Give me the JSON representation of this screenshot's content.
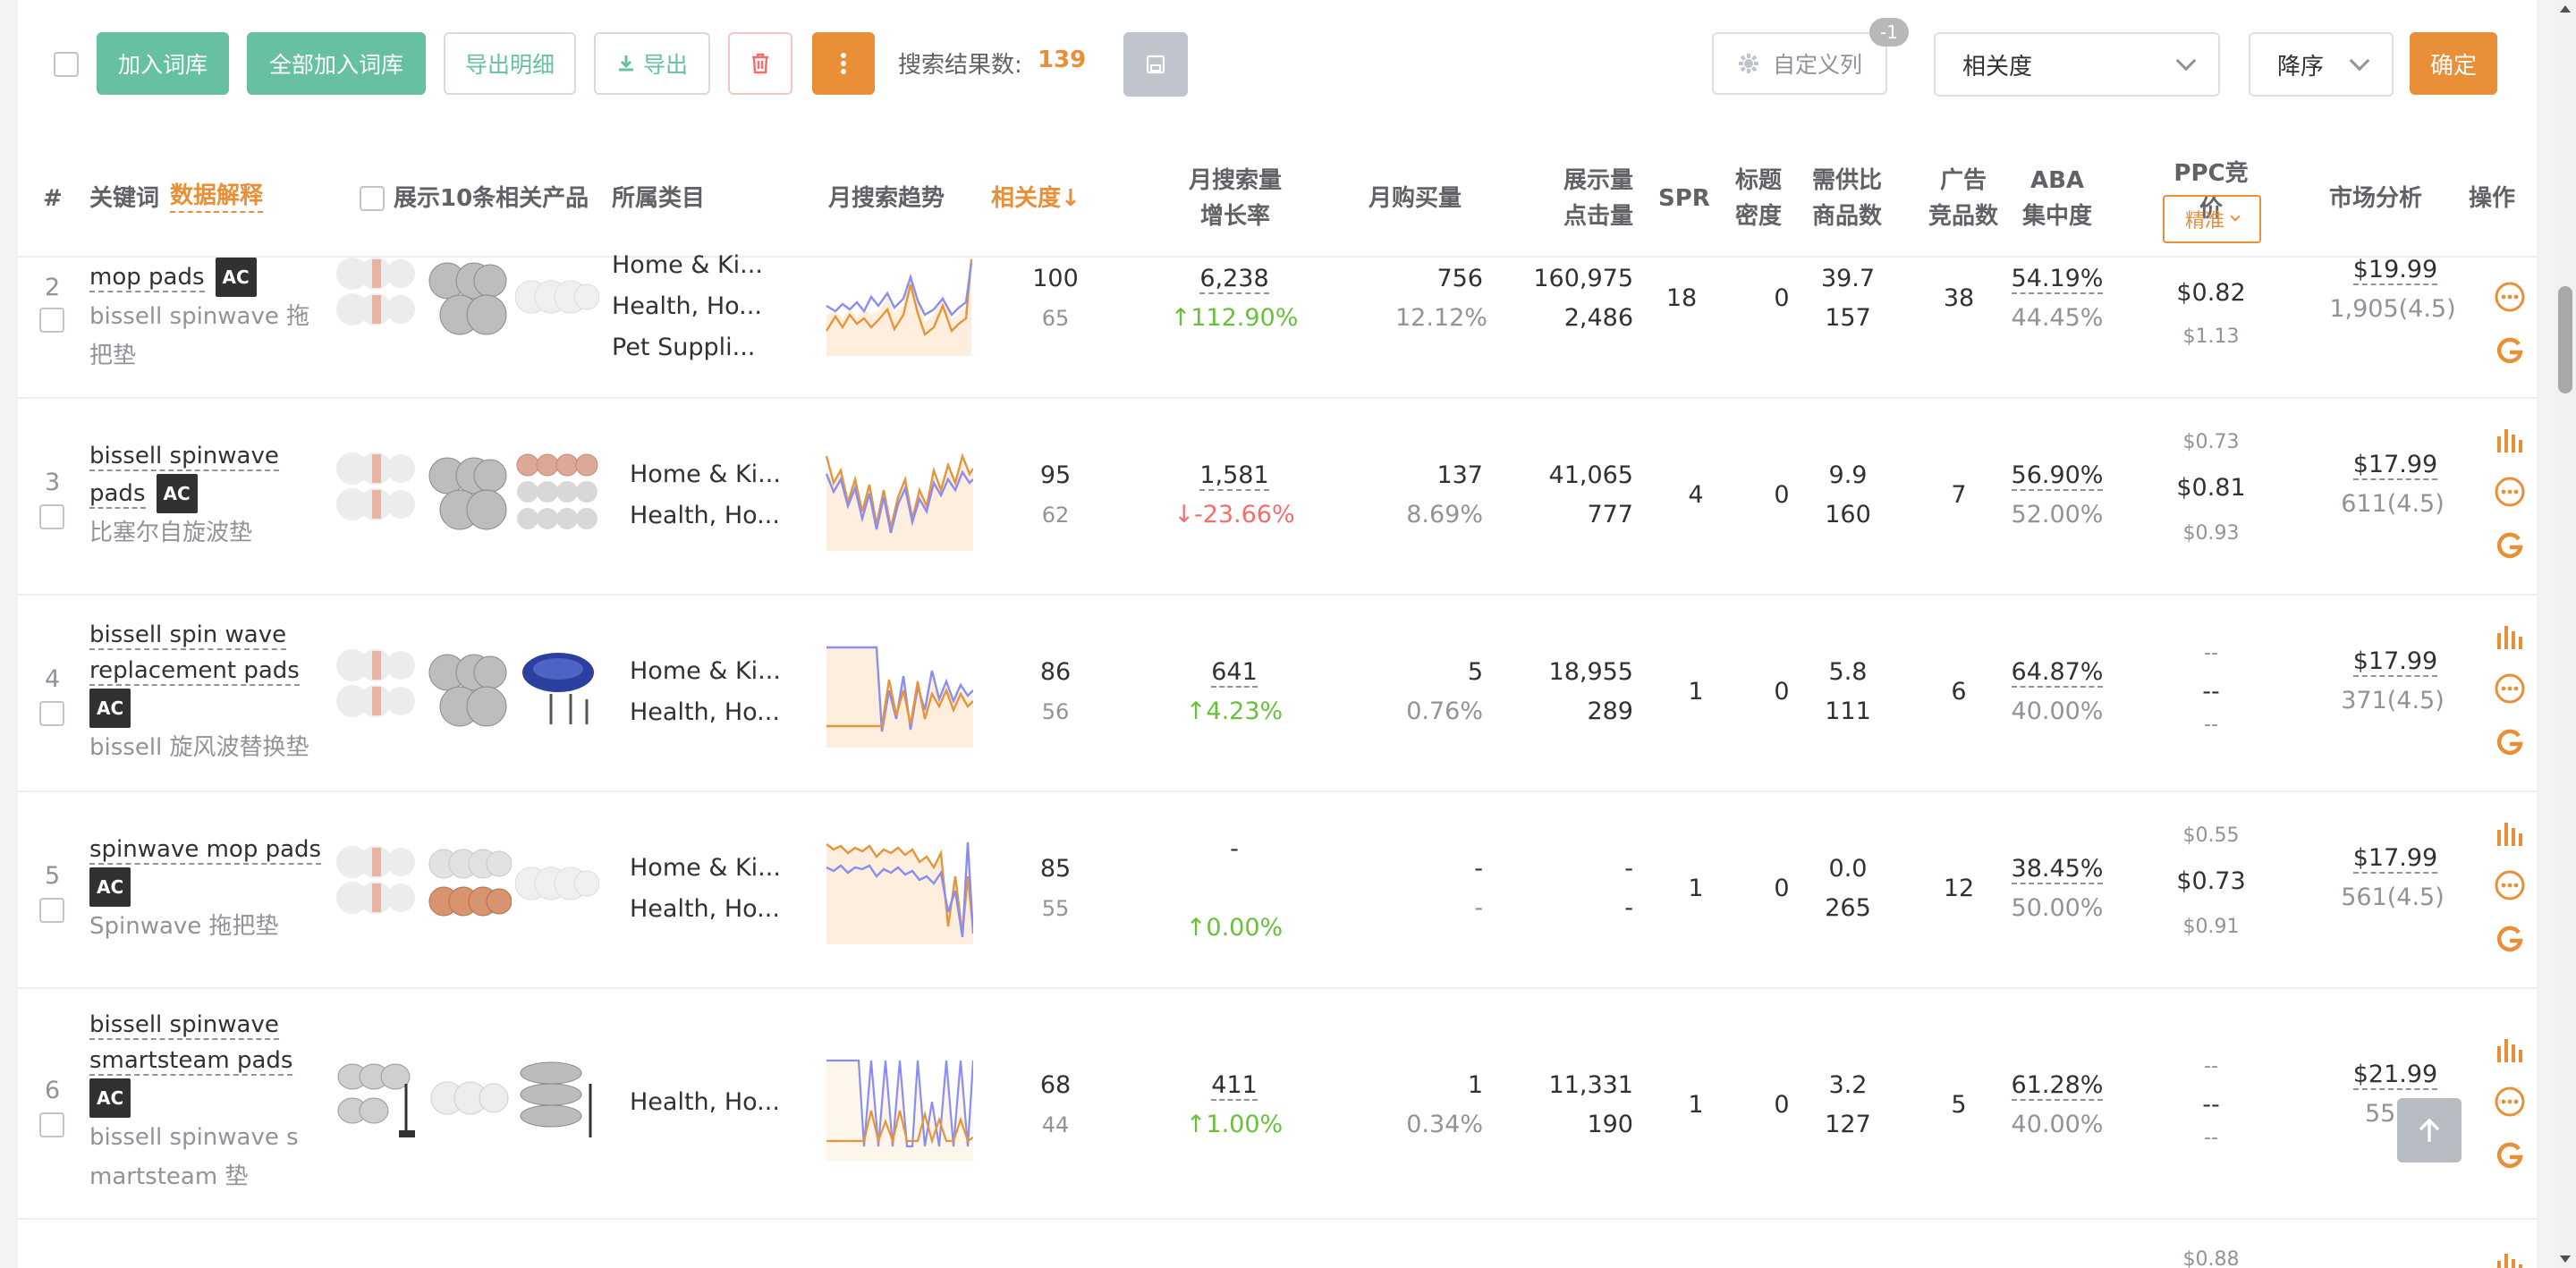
{
  "toolbar": {
    "add_to_lexicon": "加入词库",
    "add_all_to_lexicon": "全部加入词库",
    "export_detail": "导出明细",
    "export": "导出",
    "result_count_label": "搜索结果数:",
    "result_count": "139",
    "custom_columns": "自定义列",
    "custom_columns_badge": "-1",
    "sort_field": "相关度",
    "sort_order": "降序",
    "confirm": "确定"
  },
  "header": {
    "index": "#",
    "keyword": "关键词",
    "data_explain": "数据解释",
    "show_products": "展示10条相关产品",
    "category": "所属类目",
    "trend": "月搜索趋势",
    "relevance": "相关度↓",
    "growth_line1": "月搜索量",
    "growth_line2": "增长率",
    "monthly_purchase": "月购买量",
    "impressions_line1": "展示量",
    "impressions_line2": "点击量",
    "spr": "SPR",
    "title_density_line1": "标题",
    "title_density_line2": "密度",
    "supply_line1": "需供比",
    "supply_line2": "商品数",
    "ads_line1": "广告",
    "ads_line2": "竞品数",
    "aba_line1": "ABA",
    "aba_line2": "集中度",
    "ppc": "PPC竞价",
    "ppc_mode": "精准",
    "market": "市场分析",
    "action": "操作"
  },
  "rows": [
    {
      "index": "2",
      "keyword": "mop pads",
      "ac": "AC",
      "keyword_cn": [
        "bissell spinwave 拖",
        "把垫"
      ],
      "categories": [
        "Home & Ki...",
        "Health, Ho...",
        "Pet Suppli..."
      ],
      "relevance": "100",
      "relevance_sub": "65",
      "volume": "6,238",
      "growth": "↑112.90%",
      "growth_dir": "up",
      "purchase": "756",
      "purchase_rate": "12.12%",
      "impressions": "160,975",
      "clicks": "2,486",
      "spr": "18",
      "title_density": "0",
      "supply_ratio": "39.7",
      "products": "157",
      "ads": "38",
      "aba": "54.19%",
      "aba_sub": "44.45%",
      "ppc_low": "",
      "ppc_mid": "$0.82",
      "ppc_high": "$1.13",
      "price": "$19.99",
      "rating": "1,905(4.5)"
    },
    {
      "index": "3",
      "keyword": "bissell spinwave",
      "keyword2": "pads",
      "ac": "AC",
      "keyword_cn": [
        "比塞尔自旋波垫"
      ],
      "categories": [
        "Home & Ki...",
        "Health, Ho..."
      ],
      "relevance": "95",
      "relevance_sub": "62",
      "volume": "1,581",
      "growth": "↓-23.66%",
      "growth_dir": "down",
      "purchase": "137",
      "purchase_rate": "8.69%",
      "impressions": "41,065",
      "clicks": "777",
      "spr": "4",
      "title_density": "0",
      "supply_ratio": "9.9",
      "products": "160",
      "ads": "7",
      "aba": "56.90%",
      "aba_sub": "52.00%",
      "ppc_low": "$0.73",
      "ppc_mid": "$0.81",
      "ppc_high": "$0.93",
      "price": "$17.99",
      "rating": "611(4.5)"
    },
    {
      "index": "4",
      "keyword": "bissell spin wave",
      "keyword2": "replacement pads",
      "ac": "AC",
      "keyword_cn": [
        "bissell 旋风波替换垫"
      ],
      "categories": [
        "Home & Ki...",
        "Health, Ho..."
      ],
      "relevance": "86",
      "relevance_sub": "56",
      "volume": "641",
      "growth": "↑4.23%",
      "growth_dir": "up",
      "purchase": "5",
      "purchase_rate": "0.76%",
      "impressions": "18,955",
      "clicks": "289",
      "spr": "1",
      "title_density": "0",
      "supply_ratio": "5.8",
      "products": "111",
      "ads": "6",
      "aba": "64.87%",
      "aba_sub": "40.00%",
      "ppc_low": "--",
      "ppc_mid": "--",
      "ppc_high": "--",
      "price": "$17.99",
      "rating": "371(4.5)"
    },
    {
      "index": "5",
      "keyword": "spinwave mop pads",
      "ac": "AC",
      "keyword_cn": [
        "Spinwave 拖把垫"
      ],
      "categories": [
        "Home & Ki...",
        "Health, Ho..."
      ],
      "relevance": "85",
      "relevance_sub": "55",
      "volume": "-",
      "growth": "↑0.00%",
      "growth_dir": "up",
      "purchase": "-",
      "purchase_rate": "-",
      "impressions": "-",
      "clicks": "-",
      "spr": "1",
      "title_density": "0",
      "supply_ratio": "0.0",
      "products": "265",
      "ads": "12",
      "aba": "38.45%",
      "aba_sub": "50.00%",
      "ppc_low": "$0.55",
      "ppc_mid": "$0.73",
      "ppc_high": "$0.91",
      "price": "$17.99",
      "rating": "561(4.5)"
    },
    {
      "index": "6",
      "keyword": "bissell spinwave",
      "keyword2": "smartsteam pads",
      "ac": "AC",
      "keyword_cn": [
        "bissell spinwave s",
        "martsteam 垫"
      ],
      "categories": [
        "Health, Ho..."
      ],
      "relevance": "68",
      "relevance_sub": "44",
      "volume": "411",
      "growth": "↑1.00%",
      "growth_dir": "up",
      "purchase": "1",
      "purchase_rate": "0.34%",
      "impressions": "11,331",
      "clicks": "190",
      "spr": "1",
      "title_density": "0",
      "supply_ratio": "3.2",
      "products": "127",
      "ads": "5",
      "aba": "61.28%",
      "aba_sub": "40.00%",
      "ppc_low": "--",
      "ppc_mid": "--",
      "ppc_high": "--",
      "price": "$21.99",
      "rating": "55(4"
    }
  ],
  "partial_row": {
    "ppc_low": "$0.88"
  },
  "colors": {
    "brand_green": "#67c1a0",
    "accent_orange": "#e88f37",
    "up_green": "#67c23a",
    "down_red": "#f56c6c",
    "trend_orange": "#e8943a",
    "trend_blue": "#8a8ef0"
  },
  "icons": {
    "more": "more-circle-icon",
    "google": "google-icon",
    "chart": "bar-chart-icon",
    "export": "download-icon",
    "delete": "trash-icon",
    "gear": "gear-icon",
    "back_to_top": "arrow-up-icon"
  }
}
